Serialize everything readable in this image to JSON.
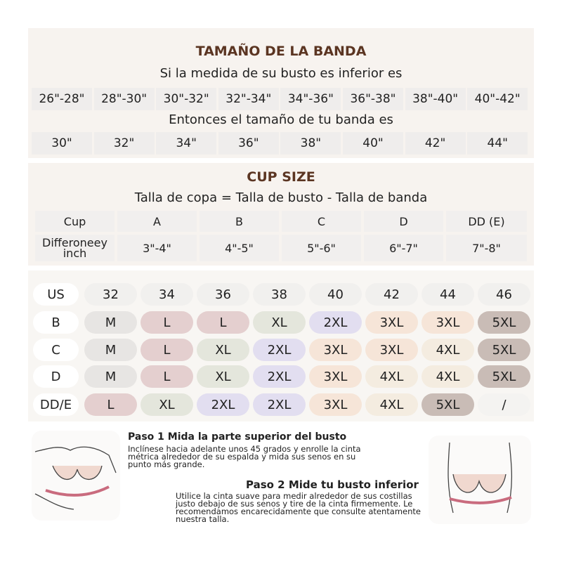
{
  "band_section": {
    "title": "TAMAÑO DE LA BANDA",
    "bust_prompt": "Si la medida de su busto es inferior es",
    "bust_ranges": [
      "26\"-28\"",
      "28\"-30\"",
      "30\"-32\"",
      "32\"-34\"",
      "34\"-36\"",
      "36\"-38\"",
      "38\"-40\"",
      "40\"-42\""
    ],
    "band_prompt": "Entonces el tamaño de tu banda es",
    "band_sizes": [
      "30\"",
      "32\"",
      "34\"",
      "36\"",
      "38\"",
      "40\"",
      "42\"",
      "44\""
    ]
  },
  "cup_section": {
    "title": "CUP SIZE",
    "formula": "Talla de copa = Talla de busto - Talla de banda",
    "table": {
      "rows": [
        [
          "Cup",
          "A",
          "B",
          "C",
          "D",
          "DD (E)"
        ],
        [
          "Differoneey inch",
          "3\"-4\"",
          "4\"-5\"",
          "5\"-6\"",
          "6\"-7\"",
          "7\"-8\""
        ]
      ]
    }
  },
  "size_grid": {
    "header": {
      "label": "US",
      "columns": [
        "32",
        "34",
        "36",
        "38",
        "40",
        "42",
        "44",
        "46"
      ]
    },
    "rows": [
      {
        "label": "B",
        "sizes": [
          "M",
          "L",
          "L",
          "XL",
          "2XL",
          "3XL",
          "3XL",
          "5XL"
        ]
      },
      {
        "label": "C",
        "sizes": [
          "M",
          "L",
          "XL",
          "2XL",
          "3XL",
          "3XL",
          "4XL",
          "5XL"
        ]
      },
      {
        "label": "D",
        "sizes": [
          "M",
          "L",
          "XL",
          "2XL",
          "3XL",
          "4XL",
          "4XL",
          "5XL"
        ]
      },
      {
        "label": "DD/E",
        "sizes": [
          "L",
          "XL",
          "2XL",
          "2XL",
          "3XL",
          "4XL",
          "5XL",
          "/"
        ]
      }
    ],
    "size_colors": {
      "M": "#e7e5e3",
      "L": "#e4cfcf",
      "XL": "#e4e6dc",
      "2XL": "#e2def0",
      "3XL": "#f6e5d8",
      "4XL": "#f4ece0",
      "5XL": "#c9bcb6",
      "/": "#f4f3f1"
    }
  },
  "steps": [
    {
      "title": "Paso 1 Mida la parte superior del busto",
      "text": "Inclínese hacia adelante unos 45 grados y enrolle la cinta métrica alrededor de su espalda y mida sus senos en su punto más grande."
    },
    {
      "title": "Paso 2 Mide tu busto inferior",
      "text": "Utilice la cinta suave para medir alrededor de sus costillas justo debajo de sus senos y tire de la cinta firmemente. Le recomendamos encarecidamente que consulte atentamente nuestra talla."
    }
  ]
}
